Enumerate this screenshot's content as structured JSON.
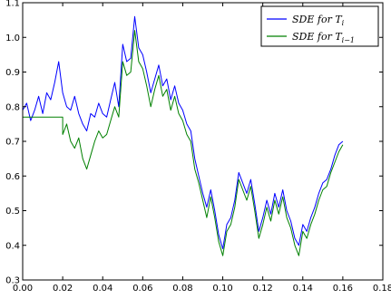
{
  "chart_data": {
    "type": "line",
    "title": "",
    "xlabel": "",
    "ylabel": "",
    "xlim": [
      0.0,
      0.18
    ],
    "ylim": [
      0.3,
      1.1
    ],
    "x_ticks": [
      "0.00",
      "0.02",
      "0.04",
      "0.06",
      "0.08",
      "0.10",
      "0.12",
      "0.14",
      "0.16",
      "0.18"
    ],
    "y_ticks": [
      "0.3",
      "0.4",
      "0.5",
      "0.6",
      "0.7",
      "0.8",
      "0.9",
      "1.0",
      "1.1"
    ],
    "grid": false,
    "legend_position": "top-right",
    "series": [
      {
        "name": "SDE for T_i",
        "legend_main": "SDE for T",
        "legend_sub": "i",
        "color": "#0000ff",
        "points": [
          [
            0.0,
            0.79
          ],
          [
            0.002,
            0.81
          ],
          [
            0.004,
            0.76
          ],
          [
            0.006,
            0.79
          ],
          [
            0.008,
            0.83
          ],
          [
            0.01,
            0.78
          ],
          [
            0.012,
            0.84
          ],
          [
            0.014,
            0.82
          ],
          [
            0.016,
            0.87
          ],
          [
            0.018,
            0.93
          ],
          [
            0.02,
            0.84
          ],
          [
            0.022,
            0.8
          ],
          [
            0.024,
            0.79
          ],
          [
            0.026,
            0.83
          ],
          [
            0.028,
            0.78
          ],
          [
            0.03,
            0.75
          ],
          [
            0.032,
            0.73
          ],
          [
            0.034,
            0.78
          ],
          [
            0.036,
            0.77
          ],
          [
            0.038,
            0.81
          ],
          [
            0.04,
            0.78
          ],
          [
            0.042,
            0.77
          ],
          [
            0.044,
            0.82
          ],
          [
            0.046,
            0.87
          ],
          [
            0.048,
            0.8
          ],
          [
            0.05,
            0.98
          ],
          [
            0.052,
            0.93
          ],
          [
            0.054,
            0.94
          ],
          [
            0.056,
            1.06
          ],
          [
            0.058,
            0.97
          ],
          [
            0.06,
            0.95
          ],
          [
            0.062,
            0.9
          ],
          [
            0.064,
            0.84
          ],
          [
            0.066,
            0.88
          ],
          [
            0.068,
            0.92
          ],
          [
            0.07,
            0.86
          ],
          [
            0.072,
            0.88
          ],
          [
            0.074,
            0.82
          ],
          [
            0.076,
            0.86
          ],
          [
            0.078,
            0.81
          ],
          [
            0.08,
            0.79
          ],
          [
            0.082,
            0.75
          ],
          [
            0.084,
            0.73
          ],
          [
            0.086,
            0.65
          ],
          [
            0.088,
            0.6
          ],
          [
            0.09,
            0.55
          ],
          [
            0.092,
            0.51
          ],
          [
            0.094,
            0.56
          ],
          [
            0.096,
            0.5
          ],
          [
            0.098,
            0.43
          ],
          [
            0.1,
            0.39
          ],
          [
            0.102,
            0.46
          ],
          [
            0.104,
            0.48
          ],
          [
            0.106,
            0.53
          ],
          [
            0.108,
            0.61
          ],
          [
            0.11,
            0.58
          ],
          [
            0.112,
            0.55
          ],
          [
            0.114,
            0.59
          ],
          [
            0.116,
            0.52
          ],
          [
            0.118,
            0.44
          ],
          [
            0.12,
            0.48
          ],
          [
            0.122,
            0.53
          ],
          [
            0.124,
            0.49
          ],
          [
            0.126,
            0.55
          ],
          [
            0.128,
            0.51
          ],
          [
            0.13,
            0.56
          ],
          [
            0.132,
            0.5
          ],
          [
            0.134,
            0.47
          ],
          [
            0.136,
            0.42
          ],
          [
            0.138,
            0.4
          ],
          [
            0.14,
            0.46
          ],
          [
            0.142,
            0.44
          ],
          [
            0.144,
            0.48
          ],
          [
            0.146,
            0.51
          ],
          [
            0.148,
            0.55
          ],
          [
            0.15,
            0.58
          ],
          [
            0.152,
            0.59
          ],
          [
            0.154,
            0.62
          ],
          [
            0.156,
            0.66
          ],
          [
            0.158,
            0.69
          ],
          [
            0.16,
            0.7
          ]
        ]
      },
      {
        "name": "SDE for T_{i-1}",
        "legend_main": "SDE for T",
        "legend_sub": "i−1",
        "color": "#008000",
        "points": [
          [
            0.0,
            0.77
          ],
          [
            0.004,
            0.77
          ],
          [
            0.008,
            0.77
          ],
          [
            0.012,
            0.77
          ],
          [
            0.016,
            0.77
          ],
          [
            0.018,
            0.77
          ],
          [
            0.02,
            0.77
          ],
          [
            0.02,
            0.72
          ],
          [
            0.022,
            0.75
          ],
          [
            0.024,
            0.7
          ],
          [
            0.026,
            0.68
          ],
          [
            0.028,
            0.71
          ],
          [
            0.03,
            0.65
          ],
          [
            0.032,
            0.62
          ],
          [
            0.034,
            0.66
          ],
          [
            0.036,
            0.7
          ],
          [
            0.038,
            0.73
          ],
          [
            0.04,
            0.71
          ],
          [
            0.042,
            0.72
          ],
          [
            0.044,
            0.76
          ],
          [
            0.046,
            0.8
          ],
          [
            0.048,
            0.77
          ],
          [
            0.05,
            0.93
          ],
          [
            0.052,
            0.89
          ],
          [
            0.054,
            0.9
          ],
          [
            0.056,
            1.02
          ],
          [
            0.058,
            0.93
          ],
          [
            0.06,
            0.91
          ],
          [
            0.062,
            0.86
          ],
          [
            0.064,
            0.8
          ],
          [
            0.066,
            0.85
          ],
          [
            0.068,
            0.89
          ],
          [
            0.07,
            0.83
          ],
          [
            0.072,
            0.85
          ],
          [
            0.074,
            0.79
          ],
          [
            0.076,
            0.83
          ],
          [
            0.078,
            0.78
          ],
          [
            0.08,
            0.76
          ],
          [
            0.082,
            0.72
          ],
          [
            0.084,
            0.7
          ],
          [
            0.086,
            0.62
          ],
          [
            0.088,
            0.58
          ],
          [
            0.09,
            0.53
          ],
          [
            0.092,
            0.48
          ],
          [
            0.094,
            0.54
          ],
          [
            0.096,
            0.48
          ],
          [
            0.098,
            0.41
          ],
          [
            0.1,
            0.37
          ],
          [
            0.102,
            0.44
          ],
          [
            0.104,
            0.46
          ],
          [
            0.106,
            0.51
          ],
          [
            0.108,
            0.59
          ],
          [
            0.11,
            0.56
          ],
          [
            0.112,
            0.53
          ],
          [
            0.114,
            0.57
          ],
          [
            0.116,
            0.5
          ],
          [
            0.118,
            0.42
          ],
          [
            0.12,
            0.46
          ],
          [
            0.122,
            0.51
          ],
          [
            0.124,
            0.47
          ],
          [
            0.126,
            0.53
          ],
          [
            0.128,
            0.49
          ],
          [
            0.13,
            0.54
          ],
          [
            0.132,
            0.48
          ],
          [
            0.134,
            0.45
          ],
          [
            0.136,
            0.4
          ],
          [
            0.138,
            0.37
          ],
          [
            0.14,
            0.44
          ],
          [
            0.142,
            0.42
          ],
          [
            0.144,
            0.46
          ],
          [
            0.146,
            0.49
          ],
          [
            0.148,
            0.53
          ],
          [
            0.15,
            0.56
          ],
          [
            0.152,
            0.57
          ],
          [
            0.154,
            0.61
          ],
          [
            0.156,
            0.64
          ],
          [
            0.158,
            0.67
          ],
          [
            0.16,
            0.69
          ]
        ]
      }
    ]
  }
}
